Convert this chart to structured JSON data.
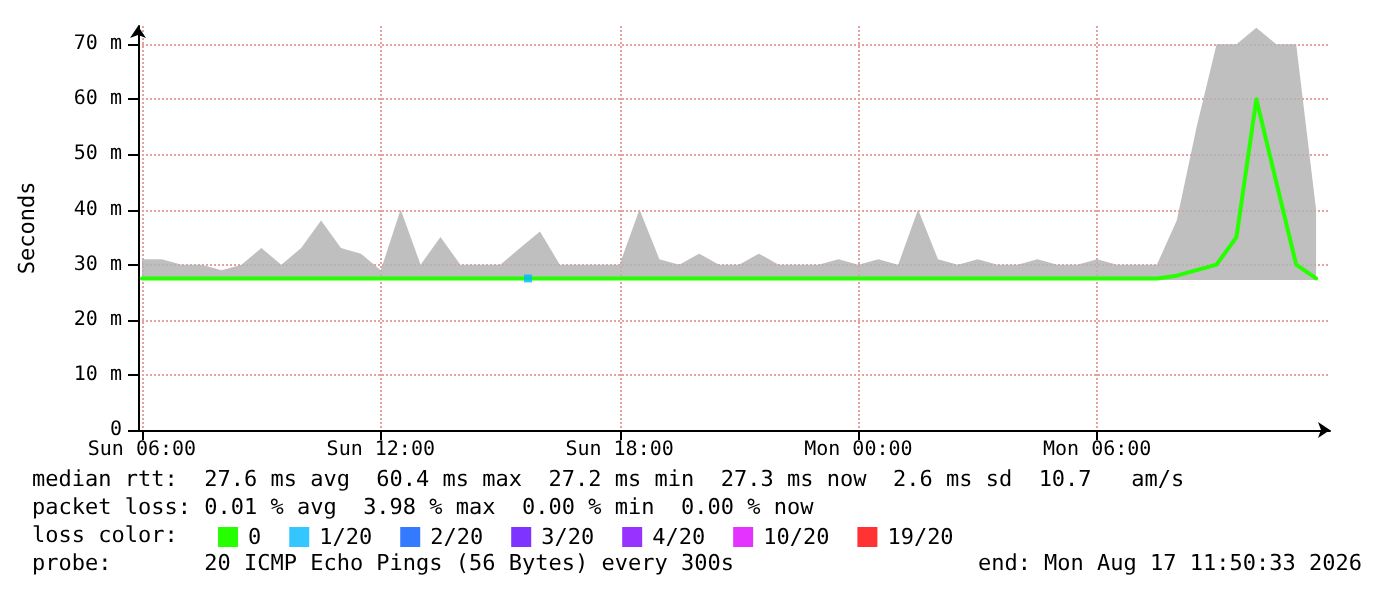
{
  "chart_data": {
    "type": "line",
    "ylabel": "Seconds",
    "legend_title": "loss color:",
    "legend": "bottom left",
    "grid": true,
    "xlim": [
      "2026-08-16T05:54",
      "2026-08-17T11:51"
    ],
    "xticks": [
      {
        "value": "2026-08-16T06:00",
        "label": "Sun 06:00"
      },
      {
        "value": "2026-08-16T12:00",
        "label": "Sun 12:00"
      },
      {
        "value": "2026-08-16T18:00",
        "label": "Sun 18:00"
      },
      {
        "value": "2026-08-17T00:00",
        "label": "Mon 00:00"
      },
      {
        "value": "2026-08-17T06:00",
        "label": "Mon 06:00"
      }
    ],
    "ylim": [
      0,
      73.3
    ],
    "yticks": [
      0,
      {
        "value": 10,
        "label": "10 m"
      },
      {
        "value": 20,
        "label": "20 m"
      },
      {
        "value": 30,
        "label": "30 m"
      },
      {
        "value": 40,
        "label": "40 m"
      },
      {
        "value": 50,
        "label": "50 m"
      },
      {
        "value": 60,
        "label": "60 m"
      },
      {
        "value": 70,
        "label": "70 m"
      }
    ],
    "x": [
      "2026-08-16T06:00",
      "2026-08-16T06:30",
      "2026-08-16T07:00",
      "2026-08-16T07:30",
      "2026-08-16T08:00",
      "2026-08-16T08:30",
      "2026-08-16T09:00",
      "2026-08-16T09:30",
      "2026-08-16T10:00",
      "2026-08-16T10:30",
      "2026-08-16T11:00",
      "2026-08-16T11:30",
      "2026-08-16T12:00",
      "2026-08-16T12:30",
      "2026-08-16T13:00",
      "2026-08-16T13:30",
      "2026-08-16T14:00",
      "2026-08-16T14:30",
      "2026-08-16T15:00",
      "2026-08-16T15:30",
      "2026-08-16T16:00",
      "2026-08-16T16:30",
      "2026-08-16T17:00",
      "2026-08-16T17:30",
      "2026-08-16T18:00",
      "2026-08-16T18:30",
      "2026-08-16T19:00",
      "2026-08-16T19:30",
      "2026-08-16T20:00",
      "2026-08-16T20:30",
      "2026-08-16T21:00",
      "2026-08-16T21:30",
      "2026-08-16T22:00",
      "2026-08-16T22:30",
      "2026-08-16T23:00",
      "2026-08-16T23:30",
      "2026-08-17T00:00",
      "2026-08-17T00:30",
      "2026-08-17T01:00",
      "2026-08-17T01:30",
      "2026-08-17T02:00",
      "2026-08-17T02:30",
      "2026-08-17T03:00",
      "2026-08-17T03:30",
      "2026-08-17T04:00",
      "2026-08-17T04:30",
      "2026-08-17T05:00",
      "2026-08-17T05:30",
      "2026-08-17T06:00",
      "2026-08-17T06:30",
      "2026-08-17T07:00",
      "2026-08-17T07:30",
      "2026-08-17T08:00",
      "2026-08-17T08:30",
      "2026-08-17T09:00",
      "2026-08-17T09:30",
      "2026-08-17T10:00",
      "2026-08-17T10:30",
      "2026-08-17T11:00",
      "2026-08-17T11:30"
    ],
    "series": [
      {
        "name": "0",
        "color": "#26ff00",
        "values": [
          27.5,
          27.5,
          27.5,
          27.5,
          27.5,
          27.5,
          27.5,
          27.5,
          27.5,
          27.5,
          27.5,
          27.5,
          27.5,
          27.5,
          27.5,
          27.5,
          27.5,
          27.5,
          27.5,
          27.5,
          27.5,
          27.5,
          27.5,
          27.5,
          27.5,
          27.5,
          27.5,
          27.5,
          27.5,
          27.5,
          27.5,
          27.5,
          27.5,
          27.5,
          27.5,
          27.5,
          27.5,
          27.5,
          27.5,
          27.5,
          27.5,
          27.5,
          27.5,
          27.5,
          27.5,
          27.5,
          27.5,
          27.5,
          27.5,
          27.5,
          27.5,
          27.5,
          28,
          29,
          30,
          35,
          60,
          45,
          30,
          27.5
        ],
        "lower": [
          27.2,
          27.2,
          27.2,
          27.2,
          27.2,
          27.2,
          27.2,
          27.2,
          27.2,
          27.2,
          27.2,
          27.2,
          27.2,
          27.2,
          27.2,
          27.2,
          27.2,
          27.2,
          27.2,
          27.2,
          27.2,
          27.2,
          27.2,
          27.2,
          27.2,
          27.2,
          27.2,
          27.2,
          27.2,
          27.2,
          27.2,
          27.2,
          27.2,
          27.2,
          27.2,
          27.2,
          27.2,
          27.2,
          27.2,
          27.2,
          27.2,
          27.2,
          27.2,
          27.2,
          27.2,
          27.2,
          27.2,
          27.2,
          27.2,
          27.2,
          27.2,
          27.2,
          27.2,
          27.2,
          27.2,
          27.2,
          27.2,
          27.2,
          27.2,
          27.2
        ],
        "upper": [
          31,
          31,
          30,
          30,
          29,
          30,
          33,
          30,
          33,
          38,
          33,
          32,
          29,
          40,
          30,
          35,
          30,
          30,
          30,
          33,
          36,
          30,
          30,
          30,
          30,
          40,
          31,
          30,
          32,
          30,
          30,
          32,
          30,
          30,
          30,
          31,
          30,
          31,
          30,
          40,
          31,
          30,
          31,
          30,
          30,
          31,
          30,
          30,
          31,
          30,
          30,
          30,
          38,
          55,
          70,
          70,
          73,
          70,
          70,
          40
        ]
      },
      {
        "name": "1/20",
        "type": "scatter",
        "marker": "square",
        "color": "#00b8ff",
        "x": [
          "2026-08-16T15:42"
        ],
        "values": [
          27.5
        ]
      },
      {
        "name": "2/20",
        "type": "scatter",
        "color": "#0059ff",
        "values": [
          null,
          null,
          null,
          null,
          null,
          null,
          null,
          null,
          null,
          null,
          null,
          null,
          null,
          null,
          null,
          null,
          null,
          null,
          null,
          null,
          null,
          null,
          null,
          null,
          null,
          null,
          null,
          null,
          null,
          null,
          null,
          null,
          null,
          null,
          null,
          null,
          null,
          null,
          null,
          null,
          null,
          null,
          null,
          null,
          null,
          null,
          null,
          null,
          null,
          null,
          null,
          null,
          null,
          null,
          null,
          null,
          null,
          null,
          null,
          null
        ]
      },
      {
        "name": "3/20",
        "type": "scatter",
        "color": "#5e00ff",
        "values": [
          null,
          null,
          null,
          null,
          null,
          null,
          null,
          null,
          null,
          null,
          null,
          null,
          null,
          null,
          null,
          null,
          null,
          null,
          null,
          null,
          null,
          null,
          null,
          null,
          null,
          null,
          null,
          null,
          null,
          null,
          null,
          null,
          null,
          null,
          null,
          null,
          null,
          null,
          null,
          null,
          null,
          null,
          null,
          null,
          null,
          null,
          null,
          null,
          null,
          null,
          null,
          null,
          null,
          null,
          null,
          null,
          null,
          null,
          null,
          null
        ]
      },
      {
        "name": "4/20",
        "type": "scatter",
        "color": "#7e00ff",
        "values": [
          null,
          null,
          null,
          null,
          null,
          null,
          null,
          null,
          null,
          null,
          null,
          null,
          null,
          null,
          null,
          null,
          null,
          null,
          null,
          null,
          null,
          null,
          null,
          null,
          null,
          null,
          null,
          null,
          null,
          null,
          null,
          null,
          null,
          null,
          null,
          null,
          null,
          null,
          null,
          null,
          null,
          null,
          null,
          null,
          null,
          null,
          null,
          null,
          null,
          null,
          null,
          null,
          null,
          null,
          null,
          null,
          null,
          null,
          null,
          null
        ]
      },
      {
        "name": "10/20",
        "type": "scatter",
        "color": "#dd00ff",
        "values": [
          null,
          null,
          null,
          null,
          null,
          null,
          null,
          null,
          null,
          null,
          null,
          null,
          null,
          null,
          null,
          null,
          null,
          null,
          null,
          null,
          null,
          null,
          null,
          null,
          null,
          null,
          null,
          null,
          null,
          null,
          null,
          null,
          null,
          null,
          null,
          null,
          null,
          null,
          null,
          null,
          null,
          null,
          null,
          null,
          null,
          null,
          null,
          null,
          null,
          null,
          null,
          null,
          null,
          null,
          null,
          null,
          null,
          null,
          null,
          null
        ]
      },
      {
        "name": "19/20",
        "type": "scatter",
        "color": "#ff0000",
        "values": [
          null,
          null,
          null,
          null,
          null,
          null,
          null,
          null,
          null,
          null,
          null,
          null,
          null,
          null,
          null,
          null,
          null,
          null,
          null,
          null,
          null,
          null,
          null,
          null,
          null,
          null,
          null,
          null,
          null,
          null,
          null,
          null,
          null,
          null,
          null,
          null,
          null,
          null,
          null,
          null,
          null,
          null,
          null,
          null,
          null,
          null,
          null,
          null,
          null,
          null,
          null,
          null,
          null,
          null,
          null,
          null,
          null,
          null,
          null,
          null
        ]
      }
    ],
    "annotations": [
      "median rtt:  27.6 ms avg  60.4 ms max  27.2 ms min  27.3 ms now  2.6 ms sd  10.7   am/s",
      "packet loss: 0.01 % avg  3.98 % max  0.00 % min  0.00 % now",
      "probe:       20 ICMP Echo Pings (56 Bytes) every 300s",
      "end: Mon Aug 17 11:50:33 2026"
    ]
  }
}
